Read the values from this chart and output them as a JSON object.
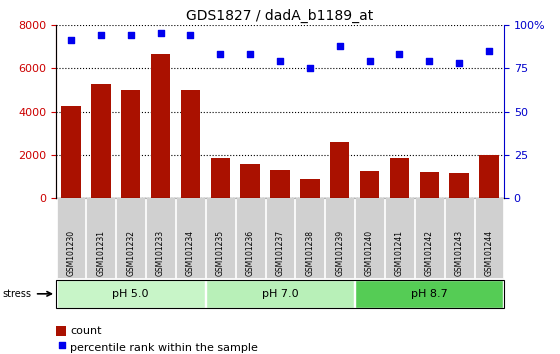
{
  "title": "GDS1827 / dadA_b1189_at",
  "categories": [
    "GSM101230",
    "GSM101231",
    "GSM101232",
    "GSM101233",
    "GSM101234",
    "GSM101235",
    "GSM101236",
    "GSM101237",
    "GSM101238",
    "GSM101239",
    "GSM101240",
    "GSM101241",
    "GSM101242",
    "GSM101243",
    "GSM101244"
  ],
  "counts": [
    4250,
    5250,
    5000,
    6650,
    5000,
    1850,
    1600,
    1300,
    900,
    2600,
    1250,
    1850,
    1200,
    1150,
    2000
  ],
  "percentiles": [
    91,
    94,
    94,
    95,
    94,
    83,
    83,
    79,
    75,
    88,
    79,
    83,
    79,
    78,
    85
  ],
  "group_configs": [
    [
      0,
      5,
      "#c8f5c8",
      "pH 5.0"
    ],
    [
      5,
      10,
      "#b8f0b8",
      "pH 7.0"
    ],
    [
      10,
      15,
      "#55cc55",
      "pH 8.7"
    ]
  ],
  "stress_label": "stress",
  "bar_color": "#aa1100",
  "dot_color": "#0000ee",
  "ylim_left": [
    0,
    8000
  ],
  "ylim_right": [
    0,
    100
  ],
  "left_yticks": [
    0,
    2000,
    4000,
    6000,
    8000
  ],
  "right_yticks": [
    0,
    25,
    50,
    75,
    100
  ],
  "tick_label_color_left": "#cc0000",
  "tick_label_color_right": "#0000cc"
}
